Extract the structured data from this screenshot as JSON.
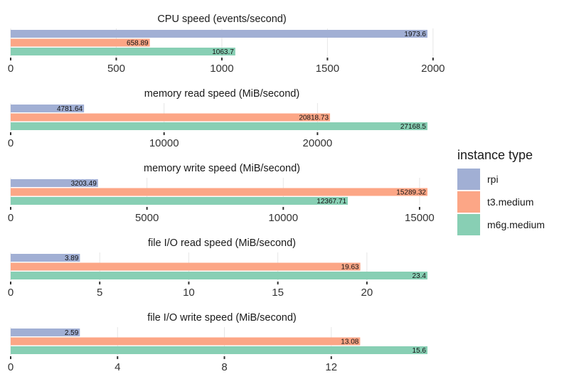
{
  "chart_data": {
    "type": "bar",
    "orientation": "horizontal",
    "legend": {
      "title": "instance type",
      "position": "right",
      "entries": [
        {
          "name": "rpi",
          "color": "#a1afd4"
        },
        {
          "name": "t3.medium",
          "color": "#fca686"
        },
        {
          "name": "m6g.medium",
          "color": "#88cfb4"
        }
      ]
    },
    "series_names": [
      "rpi",
      "t3.medium",
      "m6g.medium"
    ],
    "grid": true,
    "panels": [
      {
        "title": "CPU speed (events/second)",
        "values": [
          1973.6,
          658.89,
          1063.7
        ],
        "value_labels": [
          "1973.6",
          "658.89",
          "1063.7"
        ],
        "xlim": [
          0,
          2000
        ],
        "ticks": [
          0,
          500,
          1000,
          1500,
          2000
        ],
        "tick_labels": [
          "0",
          "500",
          "1000",
          "1500",
          "2000"
        ]
      },
      {
        "title": "memory read speed (MiB/second)",
        "values": [
          4781.64,
          20818.73,
          27168.5
        ],
        "value_labels": [
          "4781.64",
          "20818.73",
          "27168.5"
        ],
        "xlim": [
          0,
          27168.5
        ],
        "ticks": [
          0,
          10000,
          20000
        ],
        "tick_labels": [
          "0",
          "10000",
          "20000"
        ]
      },
      {
        "title": "memory write speed (MiB/second)",
        "values": [
          3203.49,
          15289.32,
          12367.71
        ],
        "value_labels": [
          "3203.49",
          "15289.32",
          "12367.71"
        ],
        "xlim": [
          0,
          15289.32
        ],
        "ticks": [
          0,
          5000,
          10000,
          15000
        ],
        "tick_labels": [
          "0",
          "5000",
          "10000",
          "15000"
        ]
      },
      {
        "title": "file I/O read speed (MiB/second)",
        "values": [
          3.89,
          19.63,
          23.4
        ],
        "value_labels": [
          "3.89",
          "19.63",
          "23.4"
        ],
        "xlim": [
          0,
          23.4
        ],
        "ticks": [
          0,
          5,
          10,
          15,
          20
        ],
        "tick_labels": [
          "0",
          "5",
          "10",
          "15",
          "20"
        ]
      },
      {
        "title": "file I/O write speed (MiB/second)",
        "values": [
          2.59,
          13.08,
          15.6
        ],
        "value_labels": [
          "2.59",
          "13.08",
          "15.6"
        ],
        "xlim": [
          0,
          15.6
        ],
        "ticks": [
          0,
          4,
          8,
          12
        ],
        "tick_labels": [
          "0",
          "4",
          "8",
          "12"
        ]
      }
    ]
  }
}
